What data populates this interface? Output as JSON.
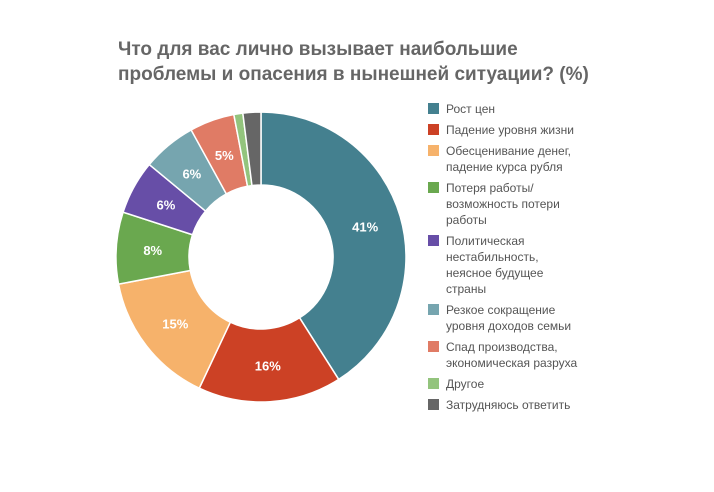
{
  "chart_data": {
    "type": "pie",
    "style": "donut",
    "title": "Что для вас лично вызывает наибольшие проблемы и опасения в нынешней ситуации? (%)",
    "categories": [
      "Рост цен",
      "Падение уровня жизни",
      "Обесценивание денег, падение курса рубля",
      "Потеря работы/ возможность потери работы",
      "Политическая нестабильность, неясное будущее страны",
      "Резкое сокращение уровня доходов семьи",
      "Спад производства, экономическая разруха",
      "Другое",
      "Затрудняюсь ответить"
    ],
    "values": [
      41,
      16,
      15,
      8,
      6,
      6,
      5,
      1,
      2
    ],
    "labels": [
      "41%",
      "16%",
      "15%",
      "8%",
      "6%",
      "6%",
      "5%",
      "",
      ""
    ],
    "colors": [
      "#44808f",
      "#cc4125",
      "#f6b26b",
      "#6aa84f",
      "#674ea7",
      "#76a5af",
      "#e07b65",
      "#93c47d",
      "#666666"
    ],
    "legend_position": "right"
  },
  "title_lines": [
    "Что для вас лично вызывает наибольшие",
    "проблемы и опасения в нынешней ситуации? (%)"
  ]
}
